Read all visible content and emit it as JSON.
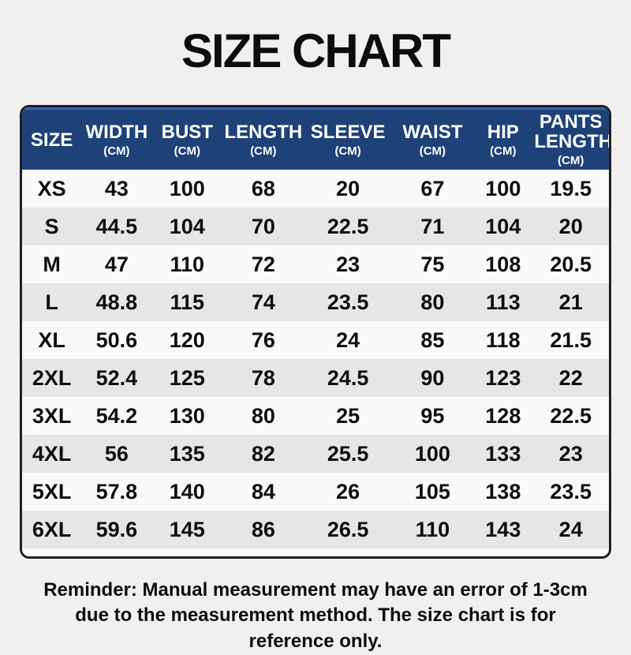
{
  "title": "SIZE CHART",
  "table": {
    "columns": [
      {
        "label": "SIZE",
        "unit": ""
      },
      {
        "label": "WIDTH",
        "unit": "(CM)"
      },
      {
        "label": "BUST",
        "unit": "(CM)"
      },
      {
        "label": "LENGTH",
        "unit": "(CM)"
      },
      {
        "label": "SLEEVE",
        "unit": "(CM)"
      },
      {
        "label": "WAIST",
        "unit": "(CM)"
      },
      {
        "label": "HIP",
        "unit": "(CM)"
      },
      {
        "label": "PANTS LENGTH",
        "unit": "(CM)"
      }
    ],
    "rows": [
      {
        "size": "XS",
        "values": [
          "43",
          "100",
          "68",
          "20",
          "67",
          "100",
          "19.5"
        ]
      },
      {
        "size": "S",
        "values": [
          "44.5",
          "104",
          "70",
          "22.5",
          "71",
          "104",
          "20"
        ]
      },
      {
        "size": "M",
        "values": [
          "47",
          "110",
          "72",
          "23",
          "75",
          "108",
          "20.5"
        ]
      },
      {
        "size": "L",
        "values": [
          "48.8",
          "115",
          "74",
          "23.5",
          "80",
          "113",
          "21"
        ]
      },
      {
        "size": "XL",
        "values": [
          "50.6",
          "120",
          "76",
          "24",
          "85",
          "118",
          "21.5"
        ]
      },
      {
        "size": "2XL",
        "values": [
          "52.4",
          "125",
          "78",
          "24.5",
          "90",
          "123",
          "22"
        ]
      },
      {
        "size": "3XL",
        "values": [
          "54.2",
          "130",
          "80",
          "25",
          "95",
          "128",
          "22.5"
        ]
      },
      {
        "size": "4XL",
        "values": [
          "56",
          "135",
          "82",
          "25.5",
          "100",
          "133",
          "23"
        ]
      },
      {
        "size": "5XL",
        "values": [
          "57.8",
          "140",
          "84",
          "26",
          "105",
          "138",
          "23.5"
        ]
      },
      {
        "size": "6XL",
        "values": [
          "59.6",
          "145",
          "86",
          "26.5",
          "110",
          "143",
          "24"
        ]
      }
    ]
  },
  "reminder": {
    "line1": "Reminder: Manual measurement may have an error of 1-3cm",
    "line2": "due to the measurement method. The size chart is for reference only."
  },
  "colors": {
    "page_bg": "#f1f0ee",
    "header_bg": "#1e4278",
    "header_top_line": "#2e66b8",
    "row_base": "#f9f9f8",
    "row_alt": "#e6e6e5",
    "border": "#1f1f1f"
  }
}
